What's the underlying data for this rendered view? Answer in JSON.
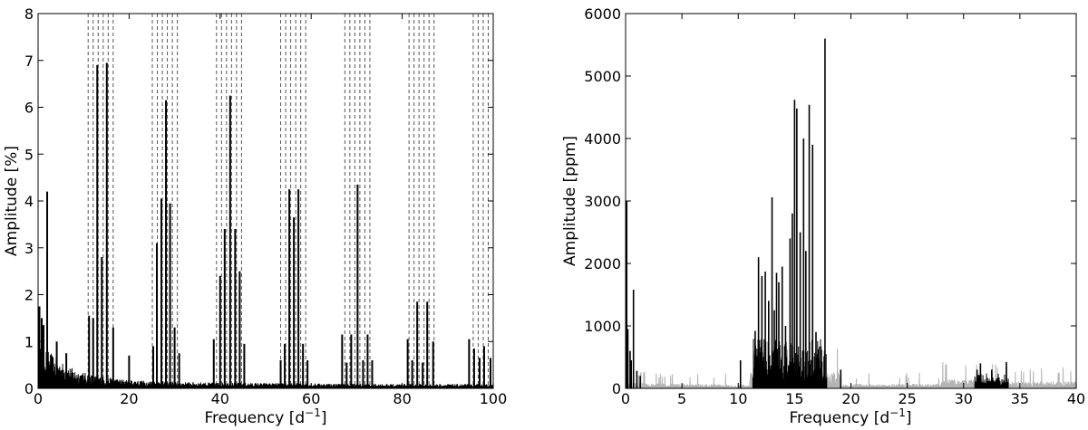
{
  "chart_data": [
    {
      "type": "line",
      "xlabel": "Frequency [d",
      "xlabel_sup": "−1",
      "xlabel_tail": "]",
      "ylabel": "Amplitude [%]",
      "xlim": [
        0,
        100
      ],
      "ylim": [
        0,
        8
      ],
      "x_ticks": [
        "0",
        "20",
        "40",
        "60",
        "80",
        "100"
      ],
      "y_ticks": [
        "0",
        "1",
        "2",
        "3",
        "4",
        "5",
        "6",
        "7",
        "8"
      ],
      "grid": false,
      "line_color": "#000000",
      "dashed_line_color": "#555555",
      "dashed_groups": [
        [
          11.0,
          12.1,
          13.2,
          14.3,
          15.4,
          16.5
        ],
        [
          25.1,
          26.2,
          27.3,
          28.4,
          29.5,
          30.6
        ],
        [
          39.2,
          40.3,
          41.4,
          42.5,
          43.6,
          44.7
        ],
        [
          53.3,
          54.4,
          55.5,
          56.6,
          57.7,
          58.8
        ],
        [
          67.4,
          68.5,
          69.6,
          70.7,
          71.8,
          72.9
        ],
        [
          81.5,
          82.6,
          83.7,
          84.8,
          85.9,
          87.0
        ],
        [
          95.6,
          96.7,
          97.8,
          98.9,
          100.0
        ]
      ],
      "peaks": [
        [
          0.3,
          1.75
        ],
        [
          0.8,
          1.5
        ],
        [
          1.2,
          1.35
        ],
        [
          2.0,
          4.2
        ],
        [
          4.1,
          1.0
        ],
        [
          6.2,
          0.75
        ],
        [
          11.2,
          1.55
        ],
        [
          12.1,
          1.5
        ],
        [
          13.0,
          6.9
        ],
        [
          14.0,
          2.8
        ],
        [
          15.1,
          6.95
        ],
        [
          16.5,
          1.3
        ],
        [
          20.0,
          0.7
        ],
        [
          25.3,
          0.9
        ],
        [
          26.1,
          3.1
        ],
        [
          27.1,
          4.05
        ],
        [
          28.1,
          6.15
        ],
        [
          29.0,
          3.95
        ],
        [
          30.0,
          1.3
        ],
        [
          31.0,
          0.75
        ],
        [
          38.6,
          1.05
        ],
        [
          40.0,
          2.4
        ],
        [
          41.0,
          3.4
        ],
        [
          42.2,
          6.25
        ],
        [
          43.3,
          3.4
        ],
        [
          44.3,
          2.5
        ],
        [
          45.3,
          0.95
        ],
        [
          53.3,
          0.6
        ],
        [
          54.2,
          0.95
        ],
        [
          55.2,
          4.25
        ],
        [
          56.2,
          3.65
        ],
        [
          57.2,
          4.25
        ],
        [
          58.2,
          0.95
        ],
        [
          59.2,
          0.6
        ],
        [
          66.8,
          1.15
        ],
        [
          67.8,
          0.55
        ],
        [
          68.8,
          1.15
        ],
        [
          70.2,
          4.35
        ],
        [
          71.4,
          0.6
        ],
        [
          72.4,
          1.15
        ],
        [
          73.4,
          0.6
        ],
        [
          81.2,
          1.05
        ],
        [
          82.2,
          0.6
        ],
        [
          83.3,
          1.85
        ],
        [
          84.5,
          0.55
        ],
        [
          85.5,
          1.85
        ],
        [
          86.8,
          1.0
        ],
        [
          94.7,
          1.05
        ],
        [
          95.8,
          0.85
        ],
        [
          97.0,
          0.65
        ],
        [
          98.0,
          0.9
        ],
        [
          99.4,
          0.65
        ]
      ]
    },
    {
      "type": "line",
      "xlabel": "Frequency [d",
      "xlabel_sup": "−1",
      "xlabel_tail": "]",
      "ylabel": "Amplitude [ppm]",
      "xlim": [
        0,
        40
      ],
      "ylim": [
        0,
        6000
      ],
      "x_ticks": [
        "0",
        "5",
        "10",
        "15",
        "20",
        "25",
        "30",
        "35",
        "40"
      ],
      "y_ticks": [
        "0",
        "1000",
        "2000",
        "3000",
        "4000",
        "5000",
        "6000"
      ],
      "grid": false,
      "series": [
        {
          "color": "#b4b4b4"
        },
        {
          "color": "#000000",
          "values": [
            [
              0.1,
              3000
            ],
            [
              0.2,
              950
            ],
            [
              0.4,
              600
            ],
            [
              0.5,
              450
            ],
            [
              0.7,
              1580
            ],
            [
              1.0,
              280
            ],
            [
              1.3,
              200
            ],
            [
              10.2,
              450
            ],
            [
              11.5,
              920
            ],
            [
              11.8,
              2100
            ],
            [
              12.1,
              1800
            ],
            [
              12.4,
              1870
            ],
            [
              12.7,
              1400
            ],
            [
              13.0,
              3060
            ],
            [
              13.2,
              1250
            ],
            [
              13.4,
              1850
            ],
            [
              13.6,
              1700
            ],
            [
              13.9,
              1950
            ],
            [
              14.2,
              1000
            ],
            [
              14.6,
              2400
            ],
            [
              14.8,
              2800
            ],
            [
              15.0,
              4620
            ],
            [
              15.2,
              4480
            ],
            [
              15.5,
              2500
            ],
            [
              15.8,
              4000
            ],
            [
              16.0,
              2200
            ],
            [
              16.3,
              4540
            ],
            [
              16.6,
              3900
            ],
            [
              16.9,
              900
            ],
            [
              17.7,
              5600
            ],
            [
              19.1,
              300
            ],
            [
              31.2,
              300
            ],
            [
              31.5,
              400
            ],
            [
              32.5,
              300
            ],
            [
              33.8,
              420
            ]
          ]
        }
      ]
    }
  ]
}
